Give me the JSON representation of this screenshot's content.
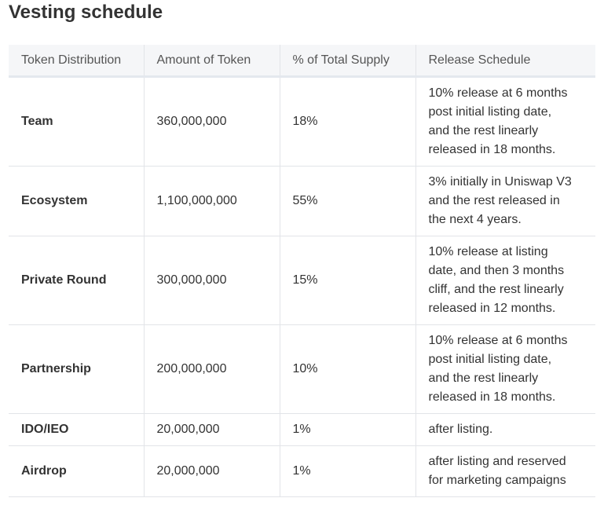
{
  "header": {
    "title": "Vesting schedule"
  },
  "table": {
    "columns": [
      "Token Distribution",
      "Amount of Token",
      "% of Total Supply",
      "Release Schedule"
    ],
    "rows": [
      [
        "Team",
        "360,000,000",
        "18%",
        [
          "10% release at 6 months",
          "post initial listing date,",
          "and the rest linearly",
          "released in 18 months."
        ]
      ],
      [
        "Ecosystem",
        "1,100,000,000",
        "55%",
        [
          "3% initially in Uniswap V3",
          "and the rest released in",
          "the next 4 years."
        ]
      ],
      [
        "Private Round",
        "300,000,000",
        "15%",
        [
          "10% release at listing",
          "date, and then 3 months",
          "cliff, and the rest linearly",
          "released in 12 months."
        ]
      ],
      [
        "Partnership",
        "200,000,000",
        "10%",
        [
          "10% release at 6 months",
          "post initial listing date,",
          "and the rest linearly",
          "released in 18 months."
        ]
      ],
      [
        "IDO/IEO",
        "20,000,000",
        "1%",
        [
          "after listing."
        ]
      ],
      [
        "Airdrop",
        "20,000,000",
        "1%",
        [
          "after listing and reserved",
          "for marketing campaigns"
        ]
      ]
    ]
  }
}
